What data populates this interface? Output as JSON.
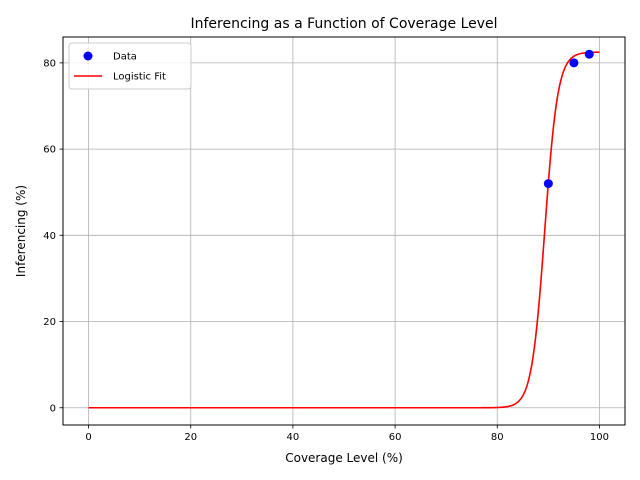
{
  "chart_data": {
    "type": "scatter",
    "title": "Inferencing as a Function of Coverage Level",
    "xlabel": "Coverage Level (%)",
    "ylabel": "Inferencing (%)",
    "xlim": [
      -5,
      105
    ],
    "ylim": [
      -4,
      86
    ],
    "xticks": [
      0,
      20,
      40,
      60,
      80,
      100
    ],
    "yticks": [
      0,
      20,
      40,
      60,
      80
    ],
    "grid": true,
    "legend_position": "top-left",
    "series": [
      {
        "name": "Data",
        "kind": "scatter",
        "color": "#0000ff",
        "x": [
          90,
          95,
          98
        ],
        "y": [
          52,
          80,
          82
        ]
      },
      {
        "name": "Logistic Fit",
        "kind": "line",
        "color": "#ff0000",
        "model": "logistic",
        "params": {
          "L": 82.5,
          "k": 0.78,
          "x0": 89.3
        },
        "x_range": [
          0,
          100
        ]
      }
    ]
  }
}
